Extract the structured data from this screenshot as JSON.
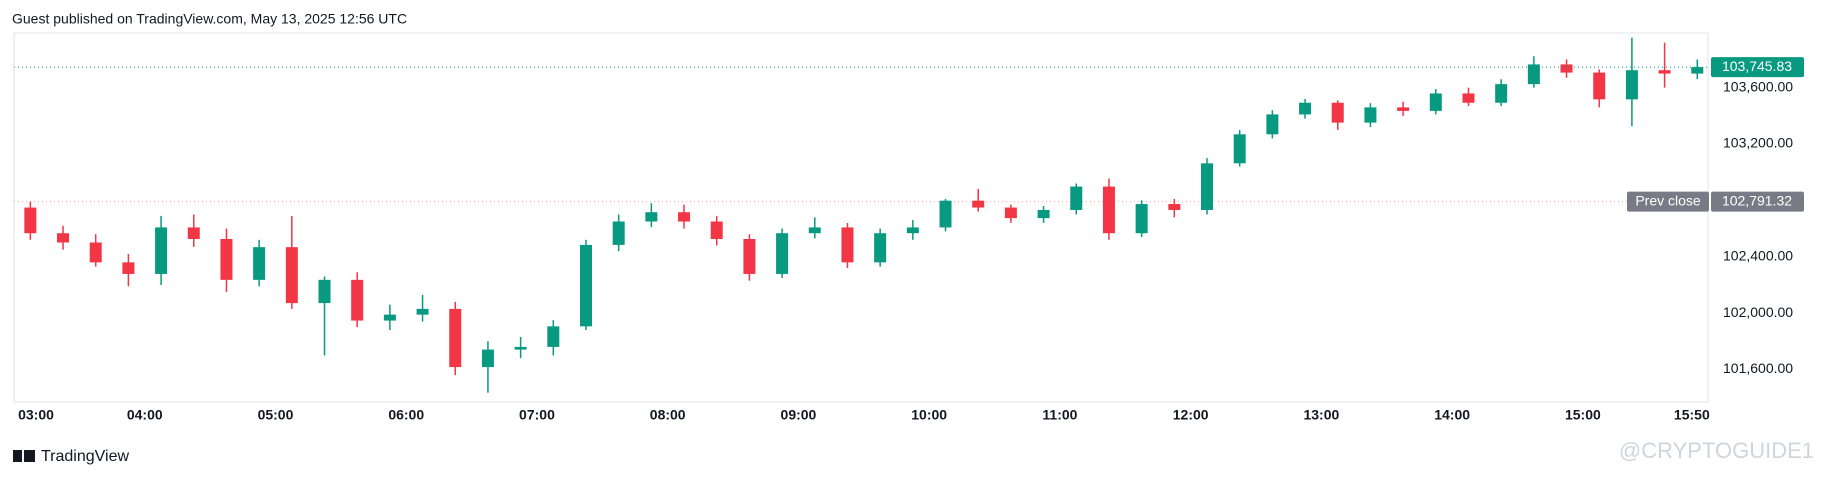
{
  "header": "Guest published on TradingView.com, May 13, 2025 12:56 UTC",
  "footer": "TradingView",
  "watermark": "@CRYPTOGUIDE1",
  "chart_data": {
    "type": "candlestick",
    "up_color": "#089981",
    "down_color": "#f23645",
    "grid": false,
    "x": [
      "03:00",
      "03:15",
      "03:30",
      "03:45",
      "04:00",
      "04:15",
      "04:30",
      "04:45",
      "05:00",
      "05:15",
      "05:30",
      "05:45",
      "06:00",
      "06:15",
      "06:30",
      "06:45",
      "07:00",
      "07:15",
      "07:30",
      "07:45",
      "08:00",
      "08:15",
      "08:30",
      "08:45",
      "09:00",
      "09:15",
      "09:30",
      "09:45",
      "10:00",
      "10:15",
      "10:30",
      "10:45",
      "11:00",
      "11:15",
      "11:30",
      "11:45",
      "12:00",
      "12:15",
      "12:30",
      "12:45",
      "13:00",
      "13:15",
      "13:30",
      "13:45",
      "14:00",
      "14:15",
      "14:30",
      "14:45",
      "15:00",
      "15:15",
      "15:30",
      "15:45"
    ],
    "open": [
      102749,
      102567,
      102501,
      102360,
      102278,
      102608,
      102526,
      102236,
      102468,
      102071,
      102236,
      101947,
      101989,
      102030,
      101617,
      101741,
      101760,
      101906,
      102484,
      102650,
      102716,
      102650,
      102526,
      102278,
      102567,
      102608,
      102360,
      102567,
      102608,
      102798,
      102749,
      102674,
      102732,
      102898,
      102567,
      102774,
      102732,
      103063,
      103269,
      103410,
      103493,
      103352,
      103460,
      103435,
      103559,
      103493,
      103625,
      103765,
      103707,
      103517,
      103724,
      103700
    ],
    "high": [
      102790,
      102620,
      102560,
      102420,
      102690,
      102700,
      102600,
      102520,
      102690,
      102260,
      102290,
      102060,
      102130,
      102080,
      101800,
      101830,
      101950,
      102520,
      102700,
      102780,
      102770,
      102690,
      102560,
      102600,
      102680,
      102640,
      102600,
      102660,
      102810,
      102881,
      102770,
      102760,
      102920,
      102955,
      102800,
      102810,
      103100,
      103300,
      103440,
      103520,
      103510,
      103490,
      103500,
      103590,
      103600,
      103660,
      103823,
      103800,
      103730,
      103955,
      103920,
      103800
    ],
    "low": [
      102520,
      102450,
      102330,
      102190,
      102200,
      102470,
      102150,
      102190,
      102030,
      101699,
      101900,
      101880,
      101940,
      101560,
      101435,
      101680,
      101700,
      101880,
      102440,
      102610,
      102600,
      102480,
      102230,
      102250,
      102530,
      102320,
      102330,
      102520,
      102580,
      102720,
      102640,
      102640,
      102700,
      102520,
      102540,
      102680,
      102700,
      103040,
      103240,
      103380,
      103300,
      103320,
      103400,
      103410,
      103470,
      103470,
      103600,
      103670,
      103460,
      103327,
      103600,
      103660
    ],
    "close": [
      102567,
      102501,
      102360,
      102278,
      102608,
      102526,
      102236,
      102468,
      102071,
      102236,
      101947,
      101989,
      102030,
      101617,
      101741,
      101760,
      101906,
      102484,
      102650,
      102716,
      102650,
      102526,
      102278,
      102567,
      102608,
      102360,
      102567,
      102608,
      102798,
      102749,
      102674,
      102732,
      102898,
      102567,
      102774,
      102732,
      103063,
      103269,
      103410,
      103493,
      103352,
      103460,
      103435,
      103559,
      103493,
      103625,
      103765,
      103707,
      103517,
      103724,
      103700,
      103745.83
    ],
    "xticks": [
      "03:00",
      "04:00",
      "05:00",
      "06:00",
      "07:00",
      "08:00",
      "09:00",
      "10:00",
      "11:00",
      "12:00",
      "13:00",
      "14:00",
      "15:00",
      "15:50"
    ],
    "ylim": [
      101369,
      103988
    ],
    "yticks": [
      {
        "value": 101600,
        "label": "101,600.00"
      },
      {
        "value": 102000,
        "label": "102,000.00"
      },
      {
        "value": 102400,
        "label": "102,400.00"
      },
      {
        "value": 103200,
        "label": "103,200.00"
      },
      {
        "value": 103600,
        "label": "103,600.00"
      }
    ],
    "last_price": {
      "value": 103745.83,
      "label": "103,745.83",
      "color": "#089981"
    },
    "prev_close": {
      "name": "Prev close",
      "value": 102791.32,
      "label": "102,791.32",
      "color": "#787b86"
    }
  }
}
